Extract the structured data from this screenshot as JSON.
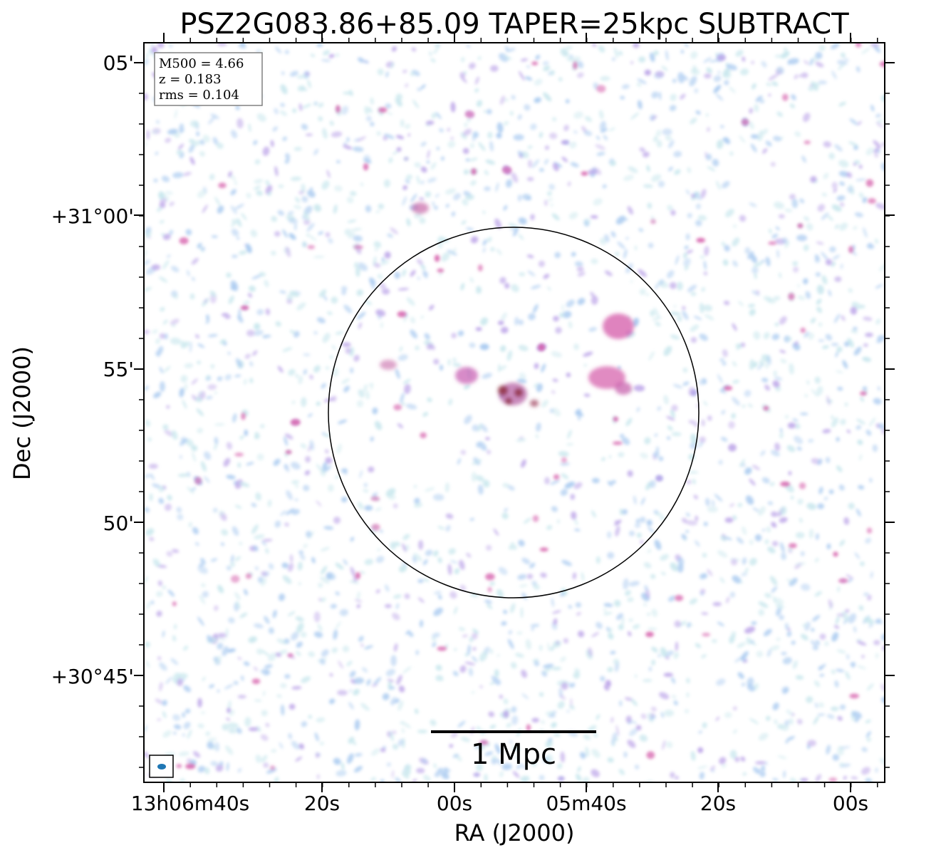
{
  "title": "PSZ2G083.86+85.09 TAPER=25kpc SUBTRACT",
  "axes": {
    "xlabel": "RA (J2000)",
    "ylabel": "Dec (J2000)",
    "x_ticks": [
      "13h06m40s",
      "20s",
      "00s",
      "05m40s",
      "20s",
      "00s"
    ],
    "y_ticks": [
      "05'",
      "+31°00'",
      "55'",
      "50'",
      "+30°45'"
    ]
  },
  "info_box": {
    "line1": "M500 = 4.66",
    "line2": "z = 0.183",
    "line3": "rms = 0.104"
  },
  "scalebar": {
    "label": "1 Mpc"
  },
  "colors": {
    "noise_light": "#bfe3ea",
    "noise_blue": "#9ec3ee",
    "noise_violet": "#b59be6",
    "emission_magenta": "#d45aa8",
    "emission_red": "#8b2a3a",
    "beam": "#1f77b4"
  }
}
